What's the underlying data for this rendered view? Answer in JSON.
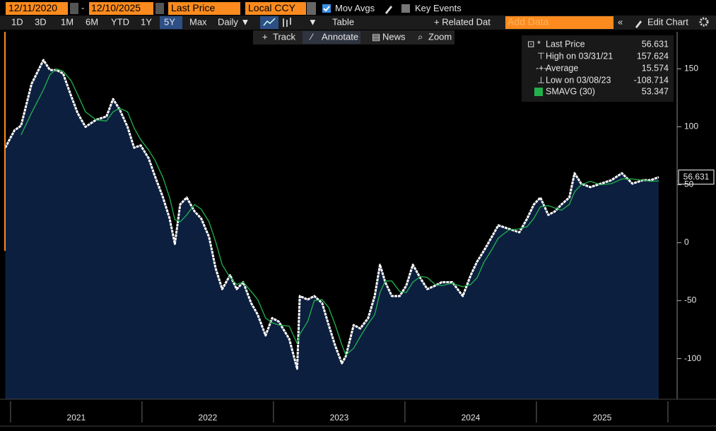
{
  "toolbar": {
    "start_date": "12/11/2020",
    "end_date": "12/10/2025",
    "field": "Last Price",
    "currency": "Local CCY",
    "mov_avgs": "Mov Avgs",
    "key_events": "Key Events",
    "ranges": [
      "1D",
      "3D",
      "1M",
      "6M",
      "YTD",
      "1Y",
      "5Y",
      "Max"
    ],
    "active_range": "5Y",
    "frequency": "Daily ▼",
    "table": "Table",
    "related": "+ Related Dat",
    "add_data": "Add Data",
    "edit_chart": "Edit Chart",
    "tools": [
      "Track",
      "Annotate",
      "News",
      "Zoom"
    ]
  },
  "chart_data": {
    "type": "line",
    "x": [
      2020.96,
      2021.03,
      2021.08,
      2021.16,
      2021.25,
      2021.3,
      2021.35,
      2021.4,
      2021.46,
      2021.51,
      2021.57,
      2021.65,
      2021.73,
      2021.78,
      2021.83,
      2021.89,
      2021.94,
      2021.99,
      2022.05,
      2022.1,
      2022.16,
      2022.21,
      2022.25,
      2022.29,
      2022.34,
      2022.4,
      2022.45,
      2022.51,
      2022.56,
      2022.61,
      2022.67,
      2022.72,
      2022.77,
      2022.83,
      2022.88,
      2022.94,
      2022.99,
      2023.04,
      2023.12,
      2023.18,
      2023.2,
      2023.26,
      2023.31,
      2023.37,
      2023.42,
      2023.47,
      2023.52,
      2023.55,
      2023.61,
      2023.66,
      2023.72,
      2023.77,
      2023.81,
      2023.85,
      2023.9,
      2023.96,
      2024.01,
      2024.06,
      2024.12,
      2024.17,
      2024.23,
      2024.28,
      2024.36,
      2024.44,
      2024.5,
      2024.55,
      2024.6,
      2024.66,
      2024.71,
      2024.79,
      2024.87,
      2024.93,
      2024.98,
      2025.03,
      2025.09,
      2025.14,
      2025.19,
      2025.25,
      2025.29,
      2025.34,
      2025.41,
      2025.49,
      2025.57,
      2025.65,
      2025.73,
      2025.81,
      2025.87,
      2025.93
    ],
    "series": [
      {
        "name": "Last Price",
        "color": "#ffffff",
        "fill": "#0c1f3f",
        "values": [
          82,
          97,
          101,
          137,
          157.624,
          149,
          149,
          146,
          127,
          112,
          100,
          106,
          109,
          124,
          115,
          100,
          82,
          84,
          73,
          57,
          39,
          21,
          -1,
          33,
          39,
          27,
          21,
          5,
          -22,
          -40,
          -28,
          -40,
          -34,
          -52,
          -62,
          -80,
          -65,
          -68,
          -83,
          -108.714,
          -46,
          -49,
          -46,
          -52,
          -71,
          -89,
          -104,
          -98,
          -71,
          -74,
          -65,
          -46,
          -19,
          -34,
          -46,
          -46,
          -37,
          -19,
          -31,
          -40,
          -37,
          -34,
          -34,
          -46,
          -28,
          -16,
          -7,
          5,
          15,
          12,
          9,
          21,
          33,
          39,
          24,
          27,
          33,
          39,
          60,
          51,
          48,
          51,
          54,
          60,
          51,
          54,
          54,
          56.631
        ]
      },
      {
        "name": "SMAVG (30)",
        "color": "#22b14c",
        "values": [
          null,
          null,
          93,
          112,
          132,
          145,
          150,
          148,
          140,
          128,
          113,
          106,
          105,
          113,
          116,
          113,
          99,
          89,
          80,
          71,
          56,
          39,
          20,
          18,
          24,
          33,
          29,
          18,
          1,
          -19,
          -30,
          -36,
          -34,
          -42,
          -49,
          -65,
          -69,
          -71,
          -72,
          -87,
          -79,
          -68,
          -50,
          -49,
          -56,
          -71,
          -88,
          -97,
          -91,
          -81,
          -70,
          -62,
          -43,
          -33,
          -33,
          -42,
          -43,
          -34,
          -29,
          -30,
          -36,
          -37,
          -35,
          -38,
          -36,
          -30,
          -17,
          -6,
          4,
          11,
          12,
          14,
          21,
          31,
          32,
          30,
          28,
          33,
          44,
          50,
          53,
          50,
          51,
          55,
          55,
          54,
          53,
          53.347
        ]
      }
    ],
    "stats": {
      "high_label": "High on 03/31/21",
      "high": 157.624,
      "average_label": "Average",
      "average": 15.574,
      "low_label": "Low on 03/08/23",
      "low": -108.714
    },
    "xlim": [
      2020.92,
      2026.07
    ],
    "xticks": [
      {
        "value": 2021.5,
        "label": "2021"
      },
      {
        "value": 2022.5,
        "label": "2022"
      },
      {
        "value": 2023.5,
        "label": "2023"
      },
      {
        "value": 2024.5,
        "label": "2024"
      },
      {
        "value": 2025.5,
        "label": "2025"
      }
    ],
    "ylim": [
      -135,
      182
    ],
    "yticks": [
      -100,
      -50,
      0,
      50,
      100,
      150
    ],
    "grid": false,
    "legend": "top-right"
  }
}
